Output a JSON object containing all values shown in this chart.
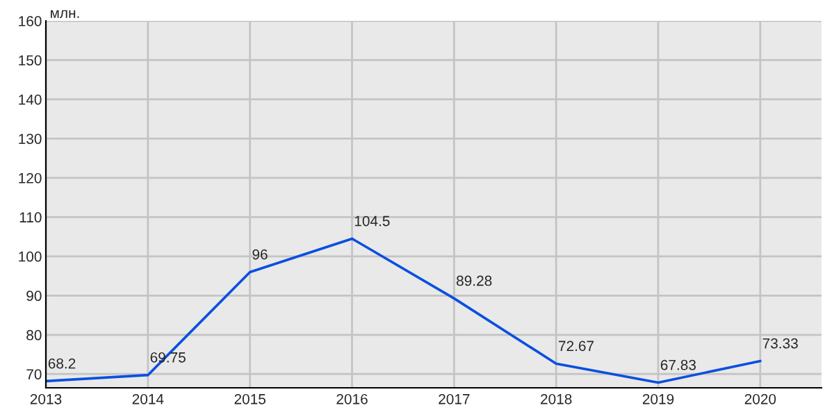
{
  "chart_data": {
    "type": "line",
    "ylabel": "млн.",
    "x": [
      2013,
      2014,
      2015,
      2016,
      2017,
      2018,
      2019,
      2020
    ],
    "series": [
      {
        "color": "#0a4fe0",
        "values": [
          68.2,
          69.75,
          96,
          104.5,
          89.28,
          72.67,
          67.83,
          73.33
        ]
      }
    ],
    "xlim": [
      2013,
      2020.6
    ],
    "xticks": [
      2013,
      2014,
      2015,
      2016,
      2017,
      2018,
      2019,
      2020
    ],
    "ylim": [
      66.5,
      160
    ],
    "yticks": [
      70,
      80,
      90,
      100,
      110,
      120,
      130,
      140,
      150,
      160
    ],
    "grid": true,
    "data_labels": true,
    "marker": "none",
    "line_style": "solid"
  }
}
